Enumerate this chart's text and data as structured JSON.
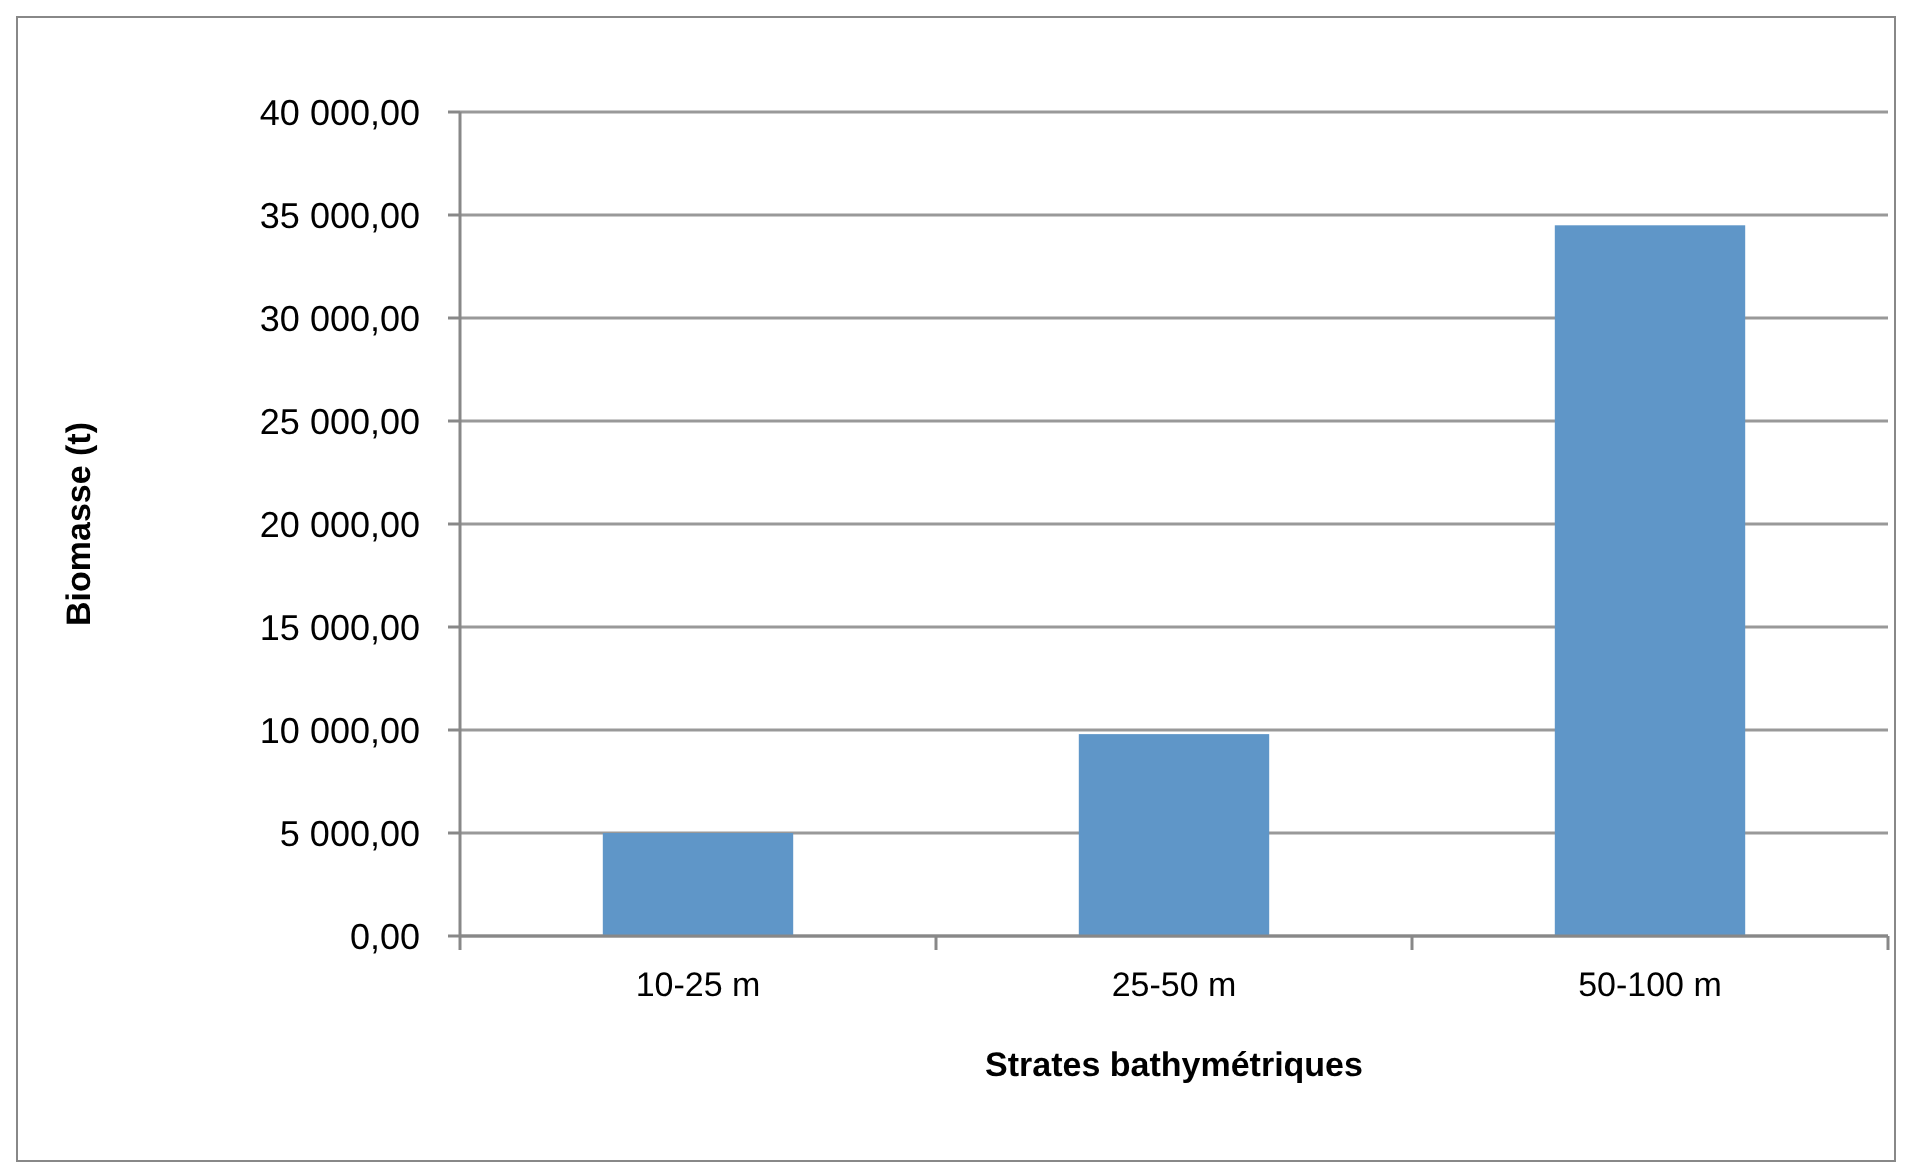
{
  "chart_data": {
    "type": "bar",
    "xlabel": "Strates bathymétriques",
    "ylabel": "Biomasse (t)",
    "categories": [
      "10-25 m",
      "25-50 m",
      "50-100 m"
    ],
    "values": [
      5000,
      9800,
      34500
    ],
    "color": "#5f96c8",
    "ylim": [
      0,
      40000
    ],
    "yticks": [
      {
        "value": 0,
        "label": "0,00"
      },
      {
        "value": 5000,
        "label": "5 000,00"
      },
      {
        "value": 10000,
        "label": "10 000,00"
      },
      {
        "value": 15000,
        "label": "15 000,00"
      },
      {
        "value": 20000,
        "label": "20 000,00"
      },
      {
        "value": 25000,
        "label": "25 000,00"
      },
      {
        "value": 30000,
        "label": "30 000,00"
      },
      {
        "value": 35000,
        "label": "35 000,00"
      },
      {
        "value": 40000,
        "label": "40 000,00"
      }
    ],
    "grid": "y"
  }
}
